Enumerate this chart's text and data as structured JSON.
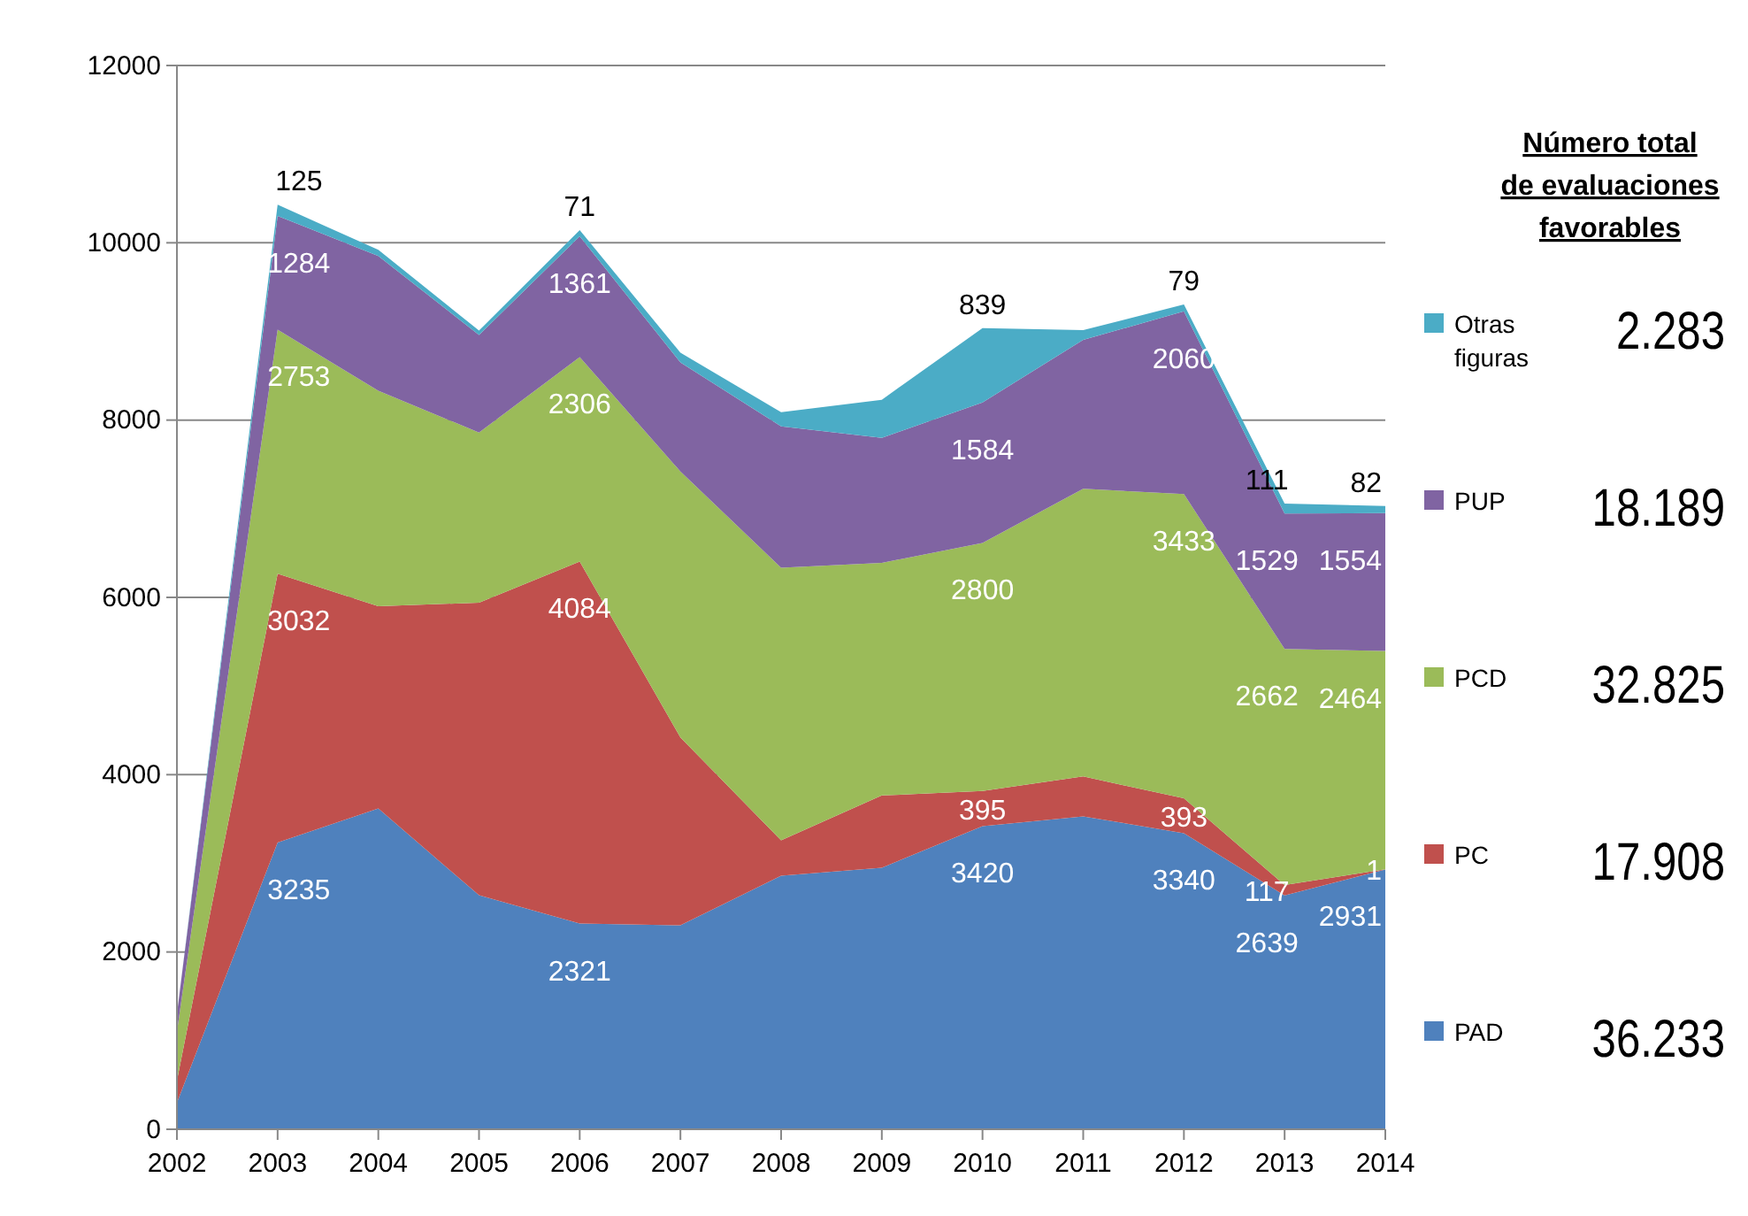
{
  "chart_data": {
    "type": "area",
    "stacked": true,
    "legend_title": "Número  total de evaluaciones favorables",
    "categories": [
      "2002",
      "2003",
      "2004",
      "2005",
      "2006",
      "2007",
      "2008",
      "2009",
      "2010",
      "2011",
      "2012",
      "2013",
      "2014"
    ],
    "series": [
      {
        "name": "PAD",
        "color": "#4f81bd",
        "values": [
          300,
          3235,
          3620,
          2640,
          2321,
          2300,
          2860,
          2950,
          3420,
          3530,
          3340,
          2639,
          2931
        ],
        "value_labels": [
          null,
          "3235",
          null,
          null,
          "2321",
          null,
          null,
          null,
          "3420",
          null,
          "3340",
          "2639",
          "2931"
        ]
      },
      {
        "name": "PC",
        "color": "#c0504d",
        "values": [
          250,
          3032,
          2280,
          3300,
          4084,
          2120,
          400,
          815,
          395,
          450,
          393,
          117,
          1
        ],
        "value_labels": [
          null,
          "3032",
          null,
          null,
          "4084",
          null,
          null,
          null,
          "395",
          null,
          "393",
          "117",
          "1"
        ]
      },
      {
        "name": "PCD",
        "color": "#9bbb59",
        "values": [
          550,
          2753,
          2430,
          1920,
          2306,
          3000,
          3075,
          2625,
          2800,
          3245,
          3433,
          2662,
          2464
        ],
        "value_labels": [
          null,
          "2753",
          null,
          null,
          "2306",
          null,
          null,
          null,
          "2800",
          null,
          "3433",
          "2662",
          "2464"
        ]
      },
      {
        "name": "PUP",
        "color": "#8064a2",
        "values": [
          200,
          1284,
          1520,
          1100,
          1361,
          1230,
          1595,
          1410,
          1584,
          1680,
          2060,
          1529,
          1554
        ],
        "value_labels": [
          null,
          "1284",
          null,
          null,
          "1361",
          null,
          null,
          null,
          "1584",
          null,
          "2060",
          "1529",
          "1554"
        ]
      },
      {
        "name": "Otras figuras",
        "color": "#4bacc6",
        "values": [
          0,
          125,
          70,
          50,
          71,
          110,
          160,
          430,
          839,
          110,
          79,
          111,
          82
        ],
        "value_labels": [
          null,
          "125",
          null,
          null,
          "71",
          null,
          null,
          null,
          "839",
          null,
          "79",
          "111",
          "82"
        ]
      }
    ],
    "annotations": [
      "36.233",
      "17.908",
      "32.825",
      "18.189",
      "2.283"
    ],
    "ylim": [
      0,
      12000
    ],
    "yticks": [
      0,
      2000,
      4000,
      6000,
      8000,
      10000,
      12000
    ],
    "grid": "y",
    "legend": "right"
  }
}
